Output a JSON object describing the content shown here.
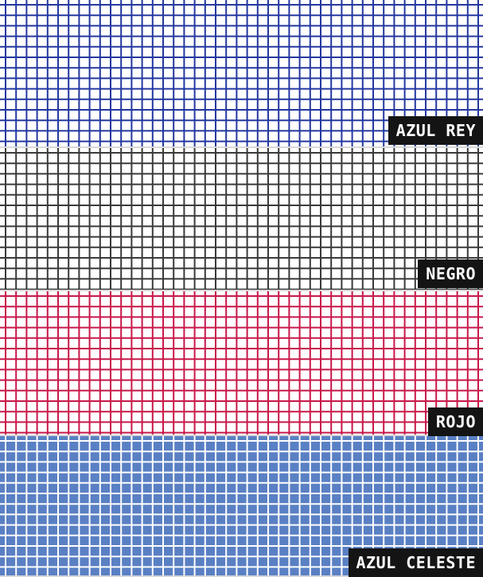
{
  "swatches": [
    {
      "label": "AZUL REY",
      "line_color": "#2438a0",
      "fill_color": "#ffffff"
    },
    {
      "label": "NEGRO",
      "line_color": "#3a3a3a",
      "fill_color": "#ffffff"
    },
    {
      "label": "ROJO",
      "line_color": "#c8184a",
      "fill_color": "#ffffff"
    },
    {
      "label": "AZUL CELESTE",
      "line_color": "#ffffff",
      "fill_color": "#5a80c4"
    }
  ]
}
